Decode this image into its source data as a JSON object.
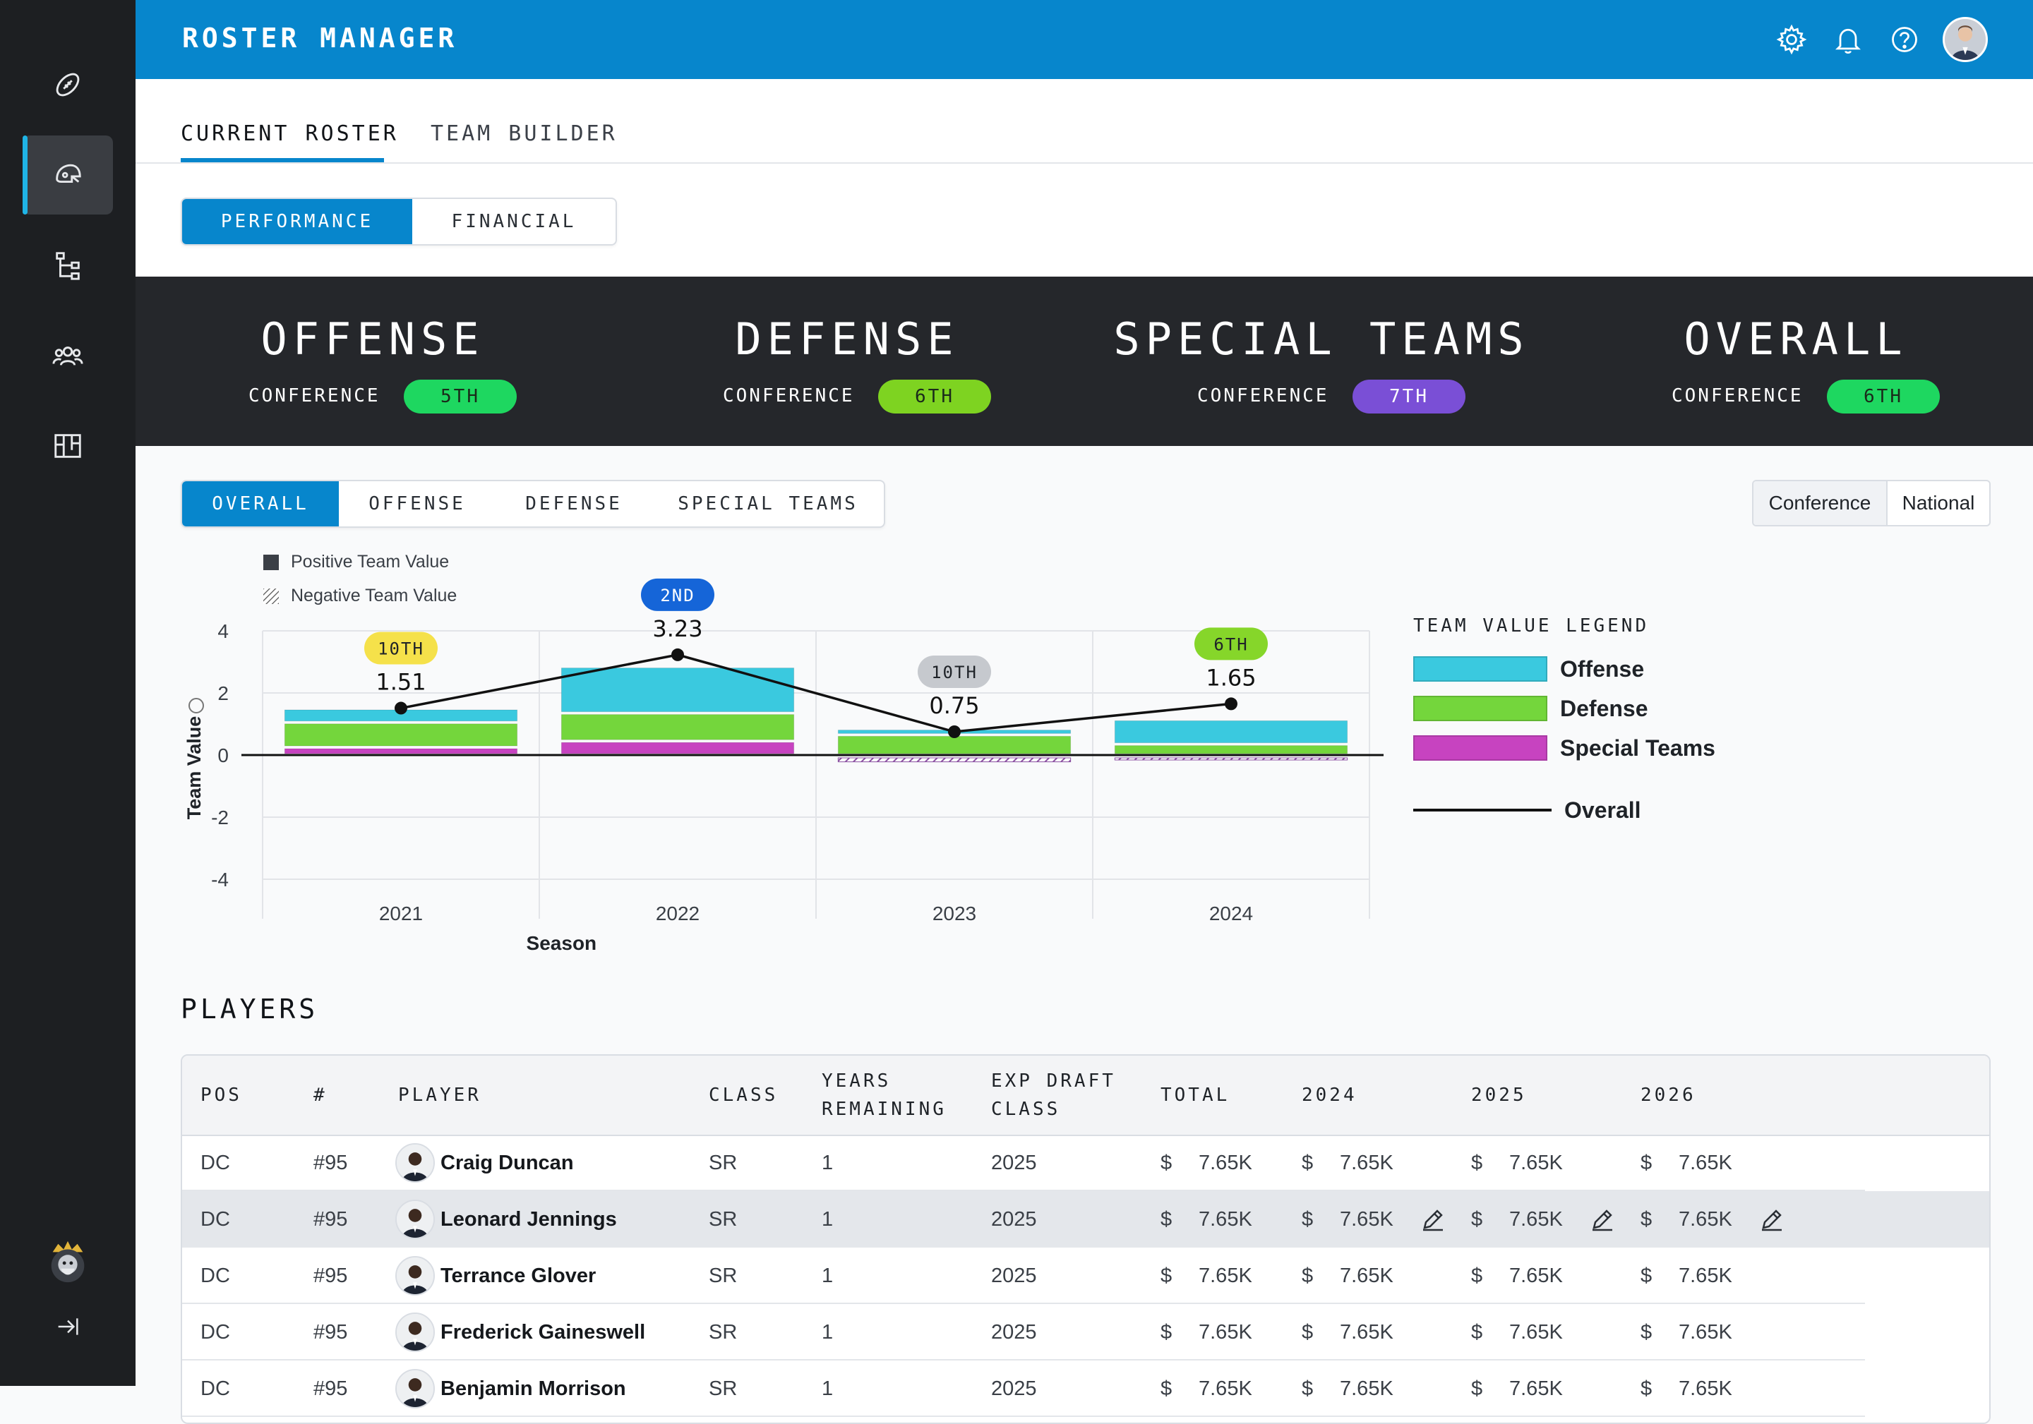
{
  "app": {
    "title": "ROSTER MANAGER"
  },
  "sidebar": {
    "items": [
      {
        "name": "football-icon"
      },
      {
        "name": "helmet-icon",
        "active": true
      },
      {
        "name": "hierarchy-icon"
      },
      {
        "name": "team-icon"
      },
      {
        "name": "board-icon"
      }
    ],
    "bottom": [
      {
        "name": "team-logo"
      },
      {
        "name": "collapse-sidebar-icon"
      }
    ]
  },
  "header": {
    "icons": [
      "settings-icon",
      "bell-icon",
      "help-icon"
    ],
    "avatar": "user-avatar"
  },
  "main_tabs": [
    {
      "label": "CURRENT ROSTER",
      "active": true
    },
    {
      "label": "TEAM BUILDER",
      "active": false
    }
  ],
  "view_toggle": [
    {
      "label": "PERFORMANCE",
      "active": true
    },
    {
      "label": "FINANCIAL",
      "active": false
    }
  ],
  "rankings": [
    {
      "title": "OFFENSE",
      "sub": "CONFERENCE",
      "rank": "5TH",
      "color": "#1ed760"
    },
    {
      "title": "DEFENSE",
      "sub": "CONFERENCE",
      "rank": "6TH",
      "color": "#7ed321"
    },
    {
      "title": "SPECIAL TEAMS",
      "sub": "CONFERENCE",
      "rank": "7TH",
      "color": "#7a4fd6"
    },
    {
      "title": "OVERALL",
      "sub": "CONFERENCE",
      "rank": "6TH",
      "color": "#1ed760"
    }
  ],
  "chart_tabs": [
    {
      "label": "OVERALL",
      "active": true
    },
    {
      "label": "OFFENSE",
      "active": false
    },
    {
      "label": "DEFENSE",
      "active": false
    },
    {
      "label": "SPECIAL TEAMS",
      "active": false
    }
  ],
  "scope_toggle": [
    {
      "label": "Conference",
      "active": true
    },
    {
      "label": "National",
      "active": false
    }
  ],
  "chart_legend_top": [
    "Positive Team Value",
    "Negative Team Value"
  ],
  "chart_legend": {
    "title": "TEAM VALUE LEGEND",
    "items": [
      {
        "label": "Offense",
        "color": "#3ac9df"
      },
      {
        "label": "Defense",
        "color": "#74d63c"
      },
      {
        "label": "Special Teams",
        "color": "#c743c0"
      },
      {
        "label": "Overall",
        "color": "#111111"
      }
    ]
  },
  "chart_data": {
    "type": "bar",
    "xlabel": "Season",
    "ylabel": "Team Value",
    "ylim": [
      -4,
      4
    ],
    "yticks": [
      4,
      2,
      0,
      -2,
      -4
    ],
    "categories": [
      "2021",
      "2022",
      "2023",
      "2024"
    ],
    "series": [
      {
        "name": "Offense",
        "values": [
          0.45,
          1.5,
          0.2,
          0.8
        ]
      },
      {
        "name": "Defense",
        "values": [
          0.8,
          0.9,
          0.65,
          0.35
        ]
      },
      {
        "name": "Special Teams",
        "values": [
          0.25,
          0.45,
          -0.85,
          -0.35
        ]
      }
    ],
    "overall": [
      1.51,
      3.23,
      0.75,
      1.65
    ],
    "overall_labels": [
      "1.51",
      "3.23",
      "0.75",
      "1.65"
    ],
    "ranks": [
      {
        "label": "10TH",
        "color": "#f5e14a",
        "text": "#1f2328"
      },
      {
        "label": "2ND",
        "color": "#1565d8",
        "text": "#ffffff"
      },
      {
        "label": "10TH",
        "color": "#c6c9ce",
        "text": "#1f2328"
      },
      {
        "label": "6TH",
        "color": "#86d62a",
        "text": "#1f2328"
      }
    ]
  },
  "players": {
    "title": "PLAYERS",
    "columns": [
      "POS",
      "#",
      "PLAYER",
      "CLASS",
      "YEARS REMAINING",
      "EXP DRAFT CLASS",
      "TOTAL",
      "2024",
      "2025",
      "2026"
    ],
    "currency": "$",
    "rows": [
      {
        "pos": "DC",
        "num": "#95",
        "name": "Craig Duncan",
        "class": "SR",
        "years": "1",
        "draft": "2025",
        "total": "7.65K",
        "y2024": "7.65K",
        "y2025": "7.65K",
        "y2026": "7.65K"
      },
      {
        "pos": "DC",
        "num": "#95",
        "name": "Leonard Jennings",
        "class": "SR",
        "years": "1",
        "draft": "2025",
        "total": "7.65K",
        "y2024": "7.65K",
        "y2025": "7.65K",
        "y2026": "7.65K",
        "highlighted": true
      },
      {
        "pos": "DC",
        "num": "#95",
        "name": "Terrance Glover",
        "class": "SR",
        "years": "1",
        "draft": "2025",
        "total": "7.65K",
        "y2024": "7.65K",
        "y2025": "7.65K",
        "y2026": "7.65K"
      },
      {
        "pos": "DC",
        "num": "#95",
        "name": "Frederick Gaineswell",
        "class": "SR",
        "years": "1",
        "draft": "2025",
        "total": "7.65K",
        "y2024": "7.65K",
        "y2025": "7.65K",
        "y2026": "7.65K"
      },
      {
        "pos": "DC",
        "num": "#95",
        "name": "Benjamin Morrison",
        "class": "SR",
        "years": "1",
        "draft": "2025",
        "total": "7.65K",
        "y2024": "7.65K",
        "y2025": "7.65K",
        "y2026": "7.65K"
      }
    ]
  }
}
